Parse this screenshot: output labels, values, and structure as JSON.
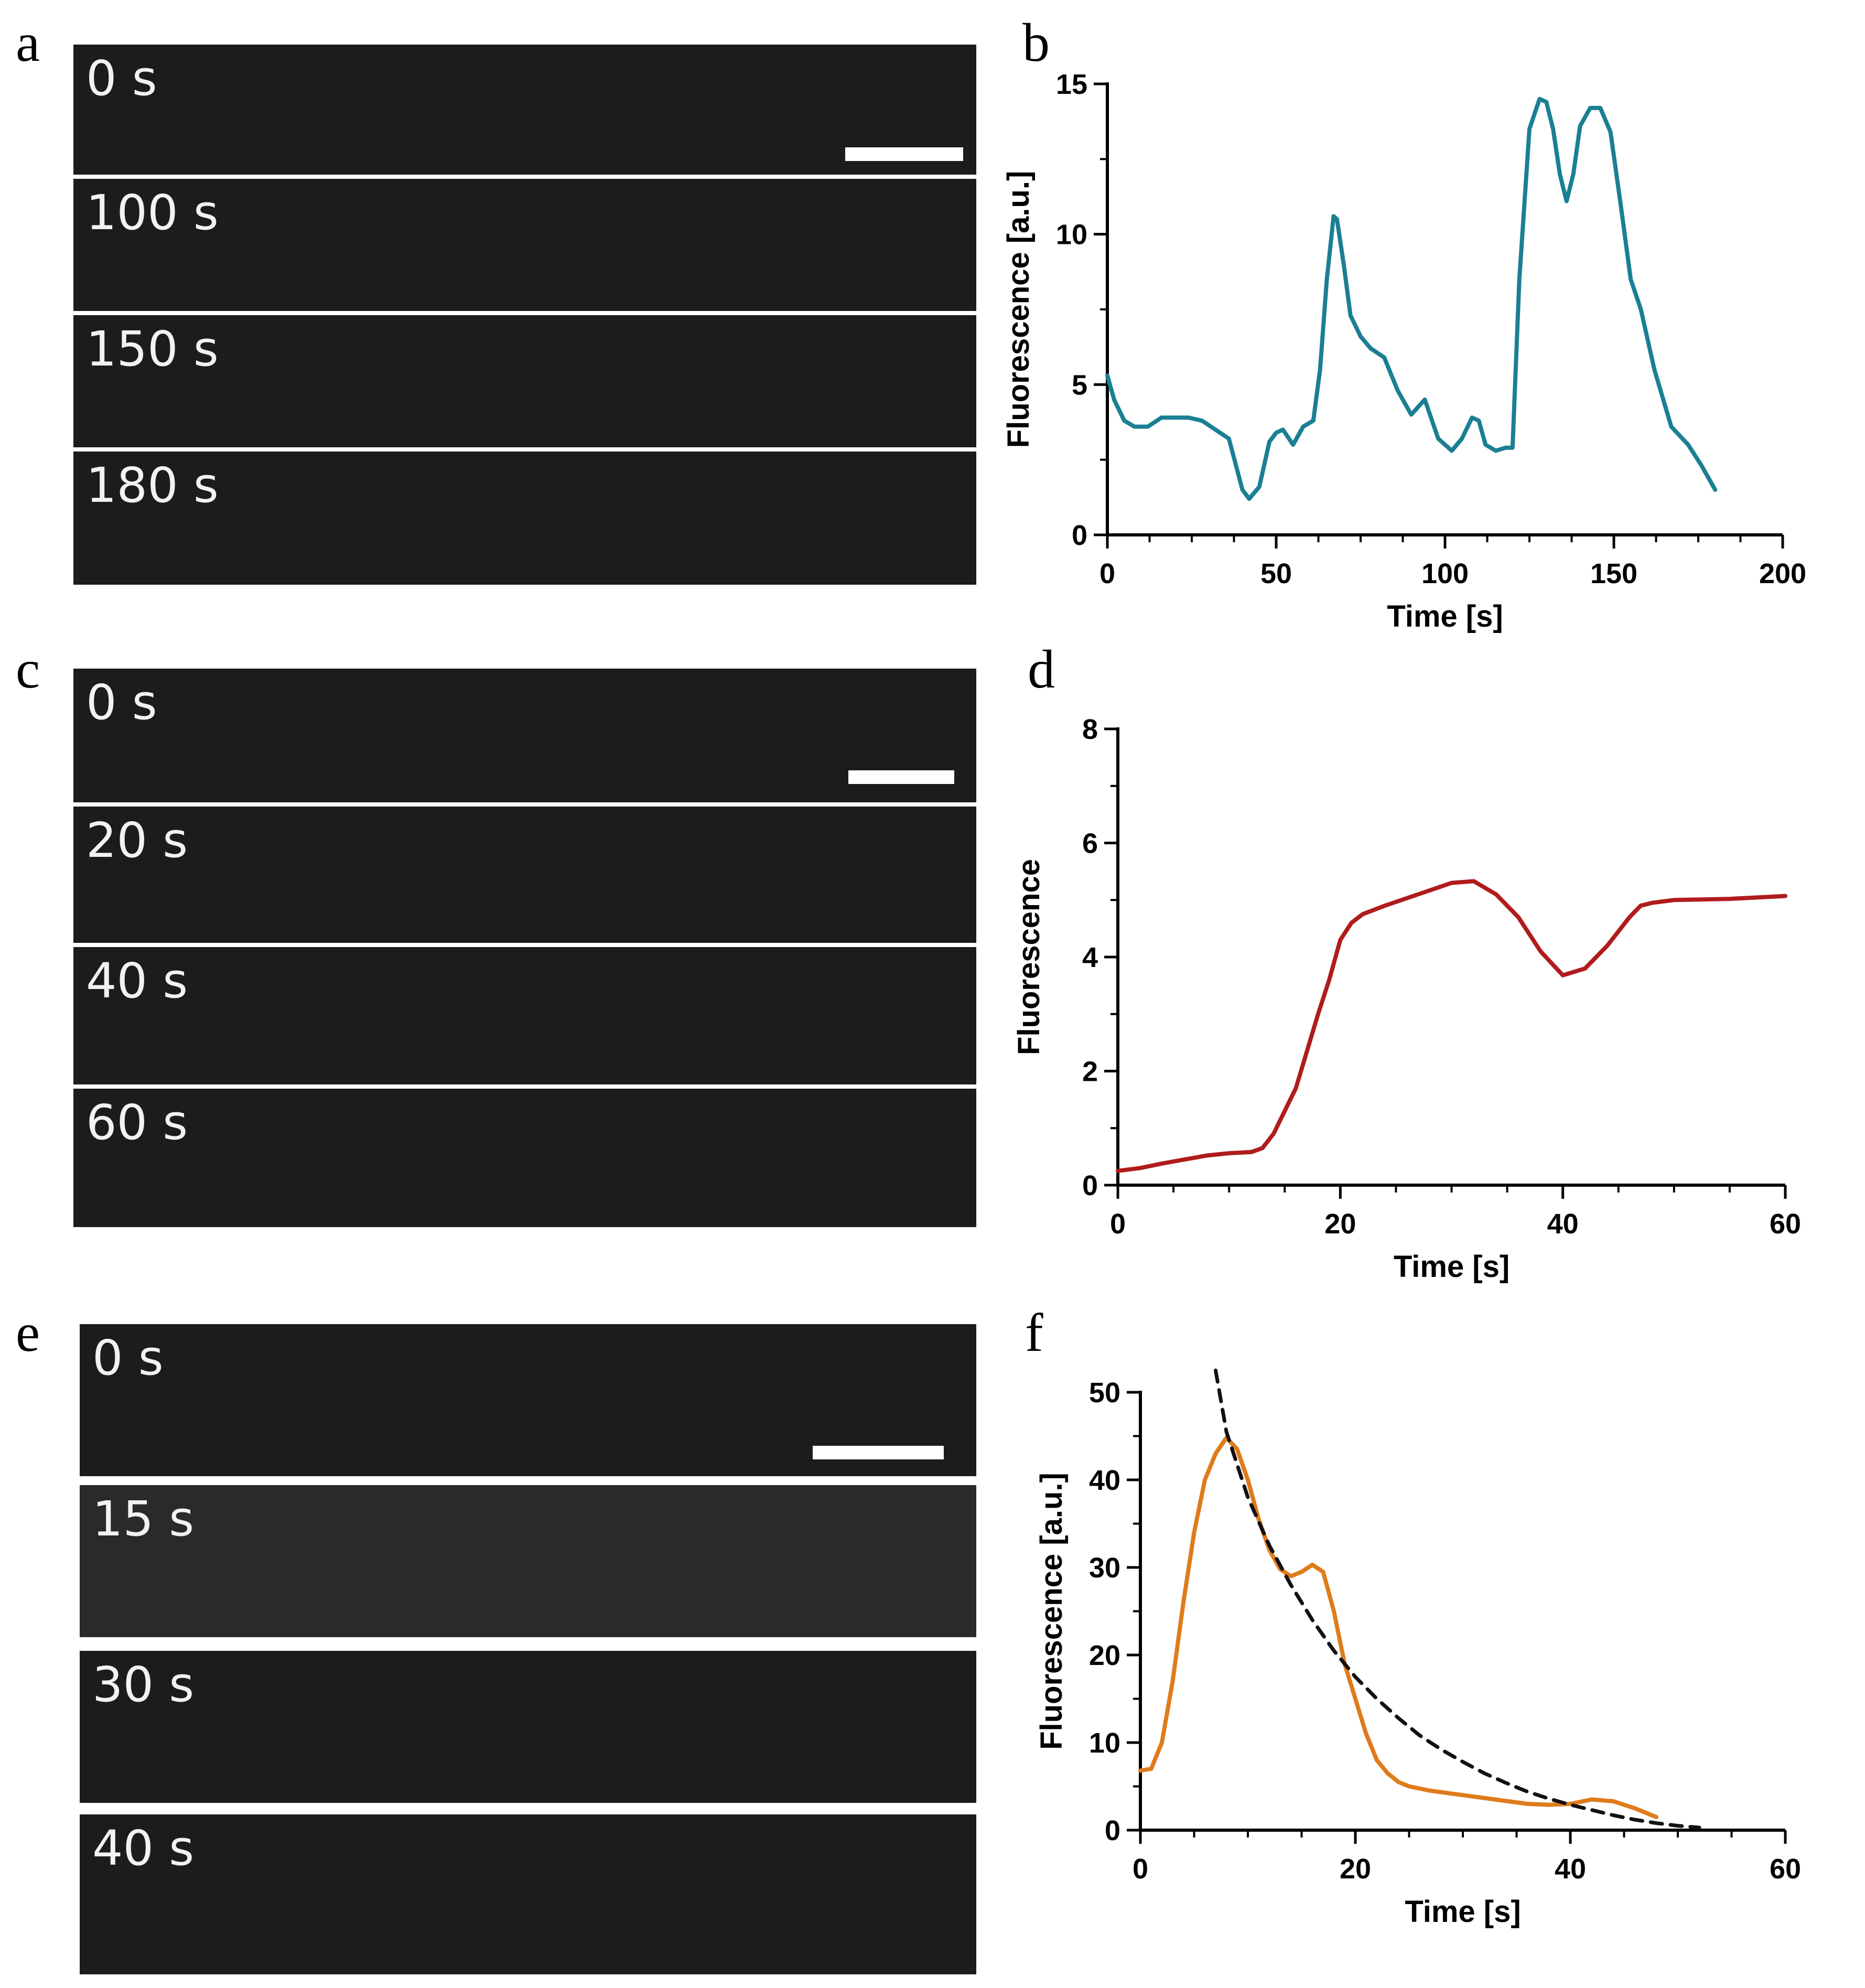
{
  "panel_letters": [
    "a",
    "b",
    "c",
    "d",
    "e",
    "f"
  ],
  "micrograph_groups": [
    {
      "time_labels": [
        "0 s",
        "100 s",
        "150 s",
        "180 s"
      ]
    },
    {
      "time_labels": [
        "0 s",
        "20 s",
        "40 s",
        "60 s"
      ]
    },
    {
      "time_labels": [
        "0 s",
        "15 s",
        "30 s",
        "40 s"
      ]
    }
  ],
  "chart_data": [
    {
      "type": "line",
      "xlabel": "Time [s]",
      "ylabel": "Fluorescence [a.u.]",
      "xlim": [
        0,
        200
      ],
      "ylim": [
        0,
        15
      ],
      "xticks": [
        0,
        50,
        100,
        150,
        200
      ],
      "yticks": [
        0,
        5,
        10,
        15
      ],
      "grid": false,
      "series": [
        {
          "color": "#1b7f94",
          "x": [
            0,
            2,
            5,
            8,
            12,
            16,
            20,
            24,
            28,
            32,
            36,
            40,
            42,
            45,
            48,
            50,
            52,
            55,
            58,
            61,
            63,
            65,
            67,
            68,
            70,
            72,
            75,
            78,
            82,
            86,
            90,
            94,
            98,
            102,
            105,
            108,
            110,
            112,
            115,
            118,
            120,
            122,
            125,
            128,
            130,
            132,
            134,
            136,
            138,
            140,
            143,
            146,
            149,
            152,
            155,
            158,
            162,
            167,
            172,
            176,
            180
          ],
          "y": [
            5.3,
            4.5,
            3.8,
            3.6,
            3.6,
            3.9,
            3.9,
            3.9,
            3.8,
            3.5,
            3.2,
            1.5,
            1.2,
            1.6,
            3.1,
            3.4,
            3.5,
            3.0,
            3.6,
            3.8,
            5.5,
            8.5,
            10.6,
            10.5,
            9.0,
            7.3,
            6.6,
            6.2,
            5.9,
            4.8,
            4.0,
            4.5,
            3.2,
            2.8,
            3.2,
            3.9,
            3.8,
            3.0,
            2.8,
            2.9,
            2.9,
            8.5,
            13.5,
            14.5,
            14.4,
            13.5,
            12.0,
            11.1,
            12.0,
            13.6,
            14.2,
            14.2,
            13.4,
            11.0,
            8.5,
            7.5,
            5.5,
            3.6,
            3.0,
            2.3,
            1.5
          ]
        }
      ]
    },
    {
      "type": "line",
      "xlabel": "Time [s]",
      "ylabel": "Fluorescence",
      "xlim": [
        0,
        60
      ],
      "ylim": [
        0,
        8
      ],
      "xticks": [
        0,
        20,
        40,
        60
      ],
      "yticks": [
        0,
        2,
        4,
        6,
        8
      ],
      "grid": false,
      "series": [
        {
          "color": "#b01c1c",
          "x": [
            0,
            2,
            4,
            6,
            8,
            10,
            12,
            13,
            14,
            16,
            18,
            19,
            20,
            21,
            22,
            24,
            27,
            30,
            32,
            34,
            36,
            38,
            40,
            42,
            44,
            46,
            47,
            48,
            50,
            55,
            60
          ],
          "y": [
            0.25,
            0.3,
            0.38,
            0.45,
            0.52,
            0.56,
            0.58,
            0.65,
            0.9,
            1.7,
            3.0,
            3.6,
            4.3,
            4.6,
            4.75,
            4.9,
            5.1,
            5.3,
            5.33,
            5.1,
            4.7,
            4.1,
            3.68,
            3.8,
            4.2,
            4.7,
            4.9,
            4.95,
            5.0,
            5.02,
            5.07
          ]
        }
      ]
    },
    {
      "type": "line",
      "xlabel": "Time [s]",
      "ylabel": "Fluorescence [a.u.]",
      "xlim": [
        0,
        60
      ],
      "ylim": [
        0,
        50
      ],
      "xticks": [
        0,
        20,
        40,
        60
      ],
      "yticks": [
        0,
        10,
        20,
        30,
        40,
        50
      ],
      "grid": false,
      "series": [
        {
          "color": "#e07b1a",
          "style": "solid",
          "x": [
            0,
            1,
            2,
            3,
            4,
            5,
            6,
            7,
            8,
            9,
            10,
            11,
            12,
            13,
            14,
            15,
            16,
            17,
            18,
            19,
            20,
            21,
            22,
            23,
            24,
            25,
            27,
            30,
            33,
            36,
            38,
            40,
            42,
            44,
            46,
            48
          ],
          "y": [
            6.8,
            7.0,
            10.0,
            17.0,
            26.0,
            34.0,
            40.0,
            43.0,
            44.8,
            43.5,
            40.0,
            35.5,
            32.0,
            29.8,
            29.0,
            29.5,
            30.3,
            29.5,
            25.0,
            19.0,
            15.0,
            11.0,
            8.0,
            6.5,
            5.5,
            5.0,
            4.5,
            4.0,
            3.5,
            3.0,
            2.9,
            3.0,
            3.5,
            3.3,
            2.5,
            1.5
          ]
        },
        {
          "color": "#111111",
          "style": "dashed",
          "x": [
            7,
            8,
            10,
            12,
            14,
            16,
            18,
            20,
            22,
            24,
            26,
            28,
            30,
            32,
            34,
            36,
            38,
            40,
            42,
            44,
            46,
            48,
            50,
            52
          ],
          "y": [
            52.5,
            45.5,
            38.0,
            32.5,
            28.0,
            24.0,
            20.5,
            17.5,
            15.0,
            12.8,
            10.8,
            9.2,
            7.8,
            6.5,
            5.4,
            4.4,
            3.6,
            2.9,
            2.3,
            1.7,
            1.2,
            0.8,
            0.5,
            0.3
          ]
        }
      ]
    }
  ]
}
